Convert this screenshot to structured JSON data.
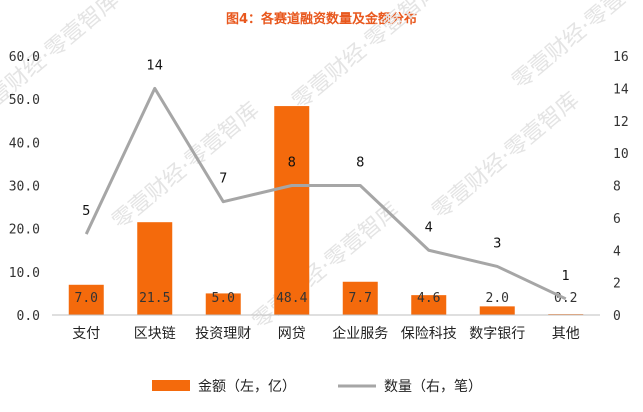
{
  "chart_data": {
    "type": "bar",
    "title": "图4：各赛道融资数量及金额分布",
    "categories": [
      "支付",
      "区块链",
      "投资理财",
      "网贷",
      "企业服务",
      "保险科技",
      "数字银行",
      "其他"
    ],
    "series": [
      {
        "name": "金额（左，亿）",
        "type": "bar",
        "axis": "left",
        "values": [
          7.0,
          21.5,
          5.0,
          48.4,
          7.7,
          4.6,
          2.0,
          0.2
        ],
        "labels": [
          "7.0",
          "21.5",
          "5.0",
          "48.4",
          "7.7",
          "4.6",
          "2.0",
          "0.2"
        ],
        "color": "#f46a0c"
      },
      {
        "name": "数量（右，笔）",
        "type": "line",
        "axis": "right",
        "values": [
          5,
          14,
          7,
          8,
          8,
          4,
          3,
          1
        ],
        "labels": [
          "5",
          "14",
          "7",
          "8",
          "8",
          "4",
          "3",
          "1"
        ],
        "color": "#a6a6a6"
      }
    ],
    "y_left": {
      "ylim": [
        0,
        60
      ],
      "ticks": [
        "0.0",
        "10.0",
        "20.0",
        "30.0",
        "40.0",
        "50.0",
        "60.0"
      ]
    },
    "y_right": {
      "ylim": [
        0,
        16
      ],
      "ticks": [
        "0",
        "2",
        "4",
        "6",
        "8",
        "10",
        "12",
        "14",
        "16"
      ]
    },
    "legend_position": "bottom",
    "grid": false
  },
  "watermark": "零壹财经·零壹智库"
}
